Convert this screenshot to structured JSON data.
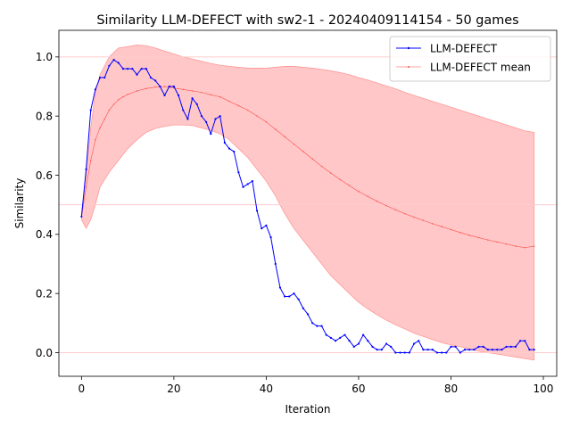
{
  "chart_data": {
    "type": "line",
    "title": "Similarity LLM-DEFECT with sw2-1 - 20240409114154 - 50 games",
    "xlabel": "Iteration",
    "ylabel": "Similarity",
    "xlim": [
      -4.9,
      102.9
    ],
    "ylim": [
      -0.08,
      1.09
    ],
    "xticks": [
      0,
      20,
      40,
      60,
      80,
      100
    ],
    "yticks": [
      0.0,
      0.2,
      0.4,
      0.6,
      0.8,
      1.0
    ],
    "xtick_labels": [
      "0",
      "20",
      "40",
      "60",
      "80",
      "100"
    ],
    "ytick_labels": [
      "0.0",
      "0.2",
      "0.4",
      "0.6",
      "0.8",
      "1.0"
    ],
    "legend_position": "top-right",
    "reference_lines": [
      0.0,
      0.5,
      1.0
    ],
    "colors": {
      "series": "#0000ff",
      "mean": "#ff4d4d",
      "band": "#ff9999",
      "reference": "#ffcccc"
    },
    "series": [
      {
        "name": "LLM-DEFECT",
        "x": [
          0,
          1,
          2,
          3,
          4,
          5,
          6,
          7,
          8,
          9,
          10,
          11,
          12,
          13,
          14,
          15,
          16,
          17,
          18,
          19,
          20,
          21,
          22,
          23,
          24,
          25,
          26,
          27,
          28,
          29,
          30,
          31,
          32,
          33,
          34,
          35,
          36,
          37,
          38,
          39,
          40,
          41,
          42,
          43,
          44,
          45,
          46,
          47,
          48,
          49,
          50,
          51,
          52,
          53,
          54,
          55,
          56,
          57,
          58,
          59,
          60,
          61,
          62,
          63,
          64,
          65,
          66,
          67,
          68,
          69,
          70,
          71,
          72,
          73,
          74,
          75,
          76,
          77,
          78,
          79,
          80,
          81,
          82,
          83,
          84,
          85,
          86,
          87,
          88,
          89,
          90,
          91,
          92,
          93,
          94,
          95,
          96,
          97,
          98
        ],
        "values": [
          0.46,
          0.62,
          0.82,
          0.89,
          0.93,
          0.93,
          0.97,
          0.99,
          0.98,
          0.96,
          0.96,
          0.96,
          0.94,
          0.96,
          0.96,
          0.93,
          0.92,
          0.9,
          0.87,
          0.9,
          0.9,
          0.87,
          0.82,
          0.79,
          0.86,
          0.84,
          0.8,
          0.78,
          0.74,
          0.79,
          0.8,
          0.71,
          0.69,
          0.68,
          0.61,
          0.56,
          0.57,
          0.58,
          0.48,
          0.42,
          0.43,
          0.39,
          0.3,
          0.22,
          0.19,
          0.19,
          0.2,
          0.18,
          0.15,
          0.13,
          0.1,
          0.09,
          0.09,
          0.06,
          0.05,
          0.04,
          0.05,
          0.06,
          0.04,
          0.02,
          0.03,
          0.06,
          0.04,
          0.02,
          0.01,
          0.01,
          0.03,
          0.02,
          0.0,
          0.0,
          0.0,
          0.0,
          0.03,
          0.04,
          0.01,
          0.01,
          0.01,
          0.0,
          0.0,
          0.0,
          0.02,
          0.02,
          0.0,
          0.01,
          0.01,
          0.01,
          0.02,
          0.02,
          0.01,
          0.01,
          0.01,
          0.01,
          0.02,
          0.02,
          0.02,
          0.04,
          0.04,
          0.01,
          0.01
        ]
      },
      {
        "name": "LLM-DEFECT mean",
        "x": [
          0,
          1,
          2,
          3,
          4,
          5,
          6,
          7,
          8,
          9,
          10,
          12,
          14,
          16,
          18,
          20,
          22,
          24,
          26,
          28,
          30,
          32,
          34,
          36,
          38,
          40,
          42,
          44,
          46,
          48,
          50,
          52,
          54,
          56,
          58,
          60,
          62,
          64,
          66,
          68,
          70,
          72,
          74,
          76,
          78,
          80,
          82,
          84,
          86,
          88,
          90,
          92,
          94,
          96,
          98
        ],
        "values": [
          0.46,
          0.56,
          0.65,
          0.72,
          0.76,
          0.79,
          0.82,
          0.84,
          0.855,
          0.865,
          0.873,
          0.885,
          0.893,
          0.898,
          0.9,
          0.895,
          0.89,
          0.885,
          0.88,
          0.872,
          0.865,
          0.85,
          0.835,
          0.82,
          0.8,
          0.78,
          0.755,
          0.73,
          0.705,
          0.68,
          0.655,
          0.63,
          0.607,
          0.585,
          0.565,
          0.545,
          0.528,
          0.512,
          0.497,
          0.483,
          0.47,
          0.458,
          0.447,
          0.436,
          0.426,
          0.416,
          0.406,
          0.397,
          0.389,
          0.381,
          0.374,
          0.367,
          0.36,
          0.355,
          0.36
        ]
      }
    ],
    "band": {
      "x": [
        0,
        1,
        2,
        3,
        4,
        6,
        8,
        10,
        12,
        14,
        16,
        18,
        20,
        22,
        24,
        26,
        28,
        30,
        32,
        34,
        36,
        38,
        40,
        42,
        44,
        46,
        48,
        50,
        52,
        54,
        56,
        58,
        60,
        62,
        64,
        66,
        68,
        70,
        72,
        74,
        76,
        78,
        80,
        82,
        84,
        86,
        88,
        90,
        92,
        94,
        96,
        98
      ],
      "upper": [
        0.47,
        0.6,
        0.76,
        0.88,
        0.94,
        1.0,
        1.03,
        1.035,
        1.04,
        1.038,
        1.03,
        1.02,
        1.01,
        1.0,
        0.993,
        0.985,
        0.978,
        0.972,
        0.968,
        0.965,
        0.962,
        0.962,
        0.962,
        0.965,
        0.968,
        0.968,
        0.965,
        0.962,
        0.958,
        0.953,
        0.947,
        0.94,
        0.93,
        0.922,
        0.912,
        0.902,
        0.892,
        0.88,
        0.87,
        0.86,
        0.85,
        0.84,
        0.83,
        0.82,
        0.81,
        0.8,
        0.79,
        0.78,
        0.77,
        0.76,
        0.75,
        0.745
      ],
      "lower": [
        0.45,
        0.42,
        0.45,
        0.5,
        0.56,
        0.61,
        0.65,
        0.69,
        0.72,
        0.745,
        0.758,
        0.765,
        0.77,
        0.77,
        0.768,
        0.76,
        0.752,
        0.74,
        0.72,
        0.69,
        0.66,
        0.62,
        0.58,
        0.53,
        0.47,
        0.42,
        0.38,
        0.34,
        0.3,
        0.26,
        0.23,
        0.2,
        0.17,
        0.148,
        0.128,
        0.11,
        0.094,
        0.08,
        0.066,
        0.055,
        0.044,
        0.034,
        0.026,
        0.02,
        0.012,
        0.005,
        0.0,
        -0.005,
        -0.01,
        -0.015,
        -0.02,
        -0.025
      ]
    }
  }
}
